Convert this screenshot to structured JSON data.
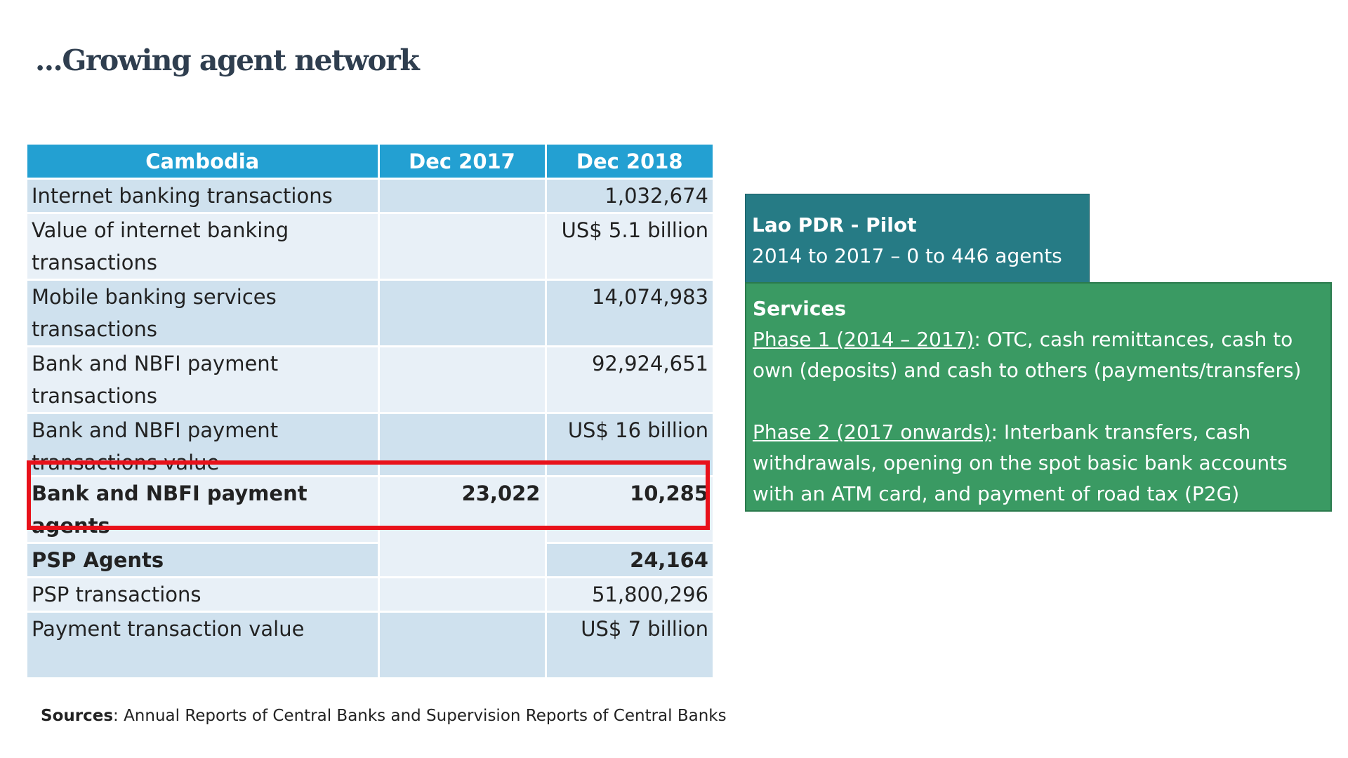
{
  "title": "...Growing agent network",
  "table": {
    "headers": [
      "Cambodia",
      "Dec 2017",
      "Dec 2018"
    ],
    "rows": [
      {
        "label": "Internet banking transactions",
        "dec2017": "",
        "dec2018": "1,032,674"
      },
      {
        "label": "Value of internet banking transactions",
        "dec2017": "",
        "dec2018": "US$ 5.1 billion"
      },
      {
        "label": "Mobile banking services transactions",
        "dec2017": "",
        "dec2018": "14,074,983"
      },
      {
        "label": "Bank and NBFI payment transactions",
        "dec2017": "",
        "dec2018": "92,924,651"
      },
      {
        "label": "Bank and NBFI payment transactions value",
        "dec2017": "",
        "dec2018": "US$ 16 billion"
      },
      {
        "label": "Bank and NBFI payment agents",
        "dec2017": "23,022",
        "dec2018": "10,285"
      },
      {
        "label": "PSP Agents",
        "dec2017": "",
        "dec2018": "24,164"
      },
      {
        "label": "PSP transactions",
        "dec2017": "",
        "dec2018": "51,800,296"
      },
      {
        "label": "Payment transaction value",
        "dec2017": "",
        "dec2018": "US$ 7 billion"
      }
    ]
  },
  "lao": {
    "title": "Lao PDR - Pilot",
    "text": "2014 to 2017 – 0 to 446 agents"
  },
  "services": {
    "title": "Services",
    "phase1_label": "Phase 1 (2014 – 2017)",
    "phase1_text": ": OTC, cash remittances, cash to own (deposits) and cash to others (payments/transfers)",
    "phase2_label": "Phase 2 (2017 onwards)",
    "phase2_text": ": Interbank transfers, cash withdrawals, opening on the spot basic bank accounts with an ATM card, and payment of road tax (P2G)"
  },
  "sources": {
    "label": "Sources",
    "text": ": Annual Reports of Central Banks and Supervision Reports of Central Banks"
  },
  "colors": {
    "header_blue": "#23a0d2",
    "row_dark": "#cfe1ee",
    "row_light": "#e8f0f7",
    "highlight_red": "#e8111a",
    "lao_teal": "#267b85",
    "services_green": "#3a9a63"
  }
}
